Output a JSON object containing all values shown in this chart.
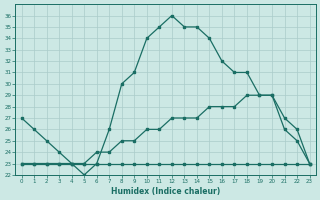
{
  "xlabel": "Humidex (Indice chaleur)",
  "bg_color": "#cce8e4",
  "grid_color": "#aaccca",
  "line_color": "#1a6e64",
  "xlim": [
    -0.5,
    23.5
  ],
  "ylim": [
    22,
    37
  ],
  "xticks": [
    0,
    1,
    2,
    3,
    4,
    5,
    6,
    7,
    8,
    9,
    10,
    11,
    12,
    13,
    14,
    15,
    16,
    17,
    18,
    19,
    20,
    21,
    22,
    23
  ],
  "yticks": [
    22,
    23,
    24,
    25,
    26,
    27,
    28,
    29,
    30,
    31,
    32,
    33,
    34,
    35,
    36
  ],
  "main_x": [
    0,
    1,
    2,
    3,
    4,
    5,
    6,
    7,
    8,
    9,
    10,
    11,
    12,
    13,
    14,
    15,
    16,
    17,
    18,
    19,
    20,
    21,
    22,
    23
  ],
  "main_y": [
    27,
    26,
    25,
    24,
    23,
    22,
    23,
    26,
    30,
    31,
    34,
    35,
    36,
    35,
    35,
    34,
    32,
    31,
    31,
    29,
    29,
    26,
    25,
    23
  ],
  "min_x": [
    0,
    1,
    2,
    3,
    4,
    5,
    6,
    7,
    8,
    9,
    10,
    11,
    12,
    13,
    14,
    15,
    16,
    17,
    18,
    19,
    20,
    21,
    22,
    23
  ],
  "min_y": [
    23,
    23,
    23,
    23,
    23,
    23,
    23,
    23,
    23,
    23,
    23,
    23,
    23,
    23,
    23,
    23,
    23,
    23,
    23,
    23,
    23,
    23,
    23,
    23
  ],
  "avg_x": [
    0,
    1,
    2,
    3,
    4,
    5,
    6,
    7,
    8,
    9,
    10,
    11,
    12,
    13,
    14,
    15,
    16,
    17,
    18,
    19,
    20,
    21,
    22,
    23
  ],
  "avg_y": [
    23,
    23,
    23,
    23,
    23,
    23,
    24,
    24,
    25,
    25,
    26,
    26,
    27,
    27,
    27,
    28,
    28,
    28,
    29,
    29,
    29,
    27,
    26,
    23
  ],
  "tick_fontsize": 4.0,
  "xlabel_fontsize": 5.5
}
